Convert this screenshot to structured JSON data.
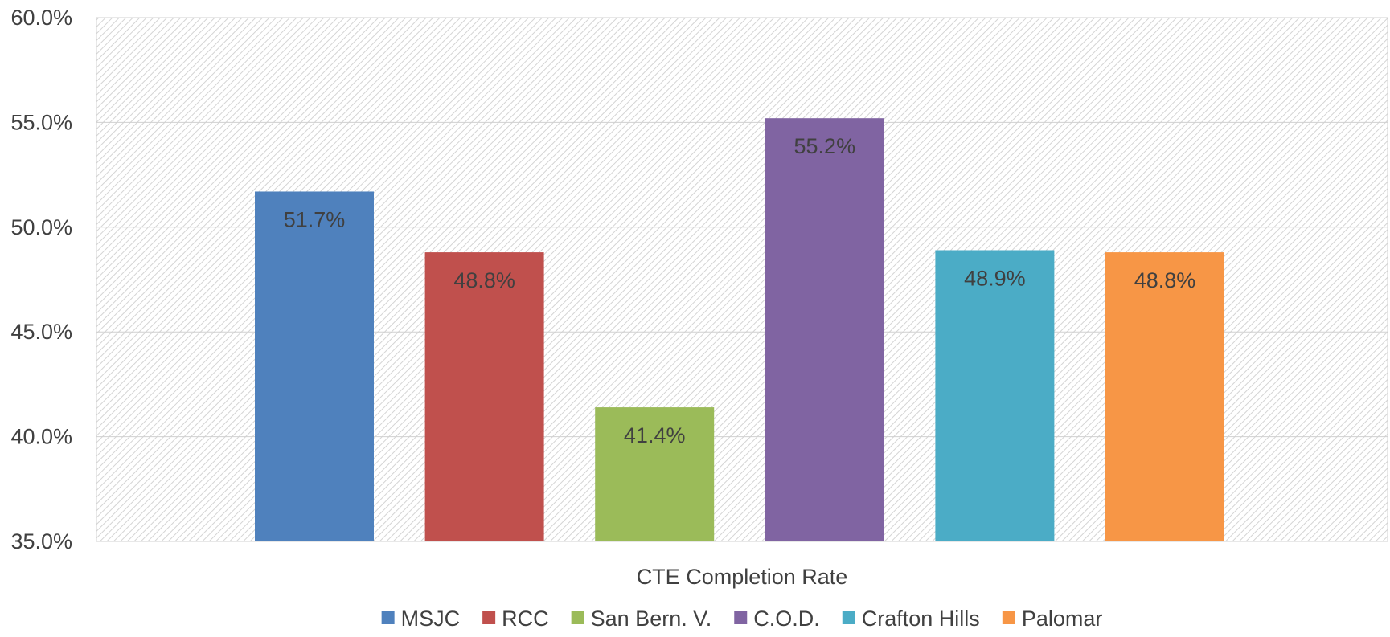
{
  "chart_data": {
    "type": "bar",
    "title": "",
    "xlabel": "",
    "ylabel": "",
    "category": "CTE Completion Rate",
    "ylim": [
      35,
      60
    ],
    "ytick_step": 5,
    "ytick_labels": [
      "35.0%",
      "40.0%",
      "45.0%",
      "50.0%",
      "55.0%",
      "60.0%"
    ],
    "grid": true,
    "background": "hatched",
    "legend_position": "bottom",
    "series": [
      {
        "name": "MSJC",
        "value": 51.7,
        "label": "51.7%",
        "color": "#4F81BD"
      },
      {
        "name": "RCC",
        "value": 48.8,
        "label": "48.8%",
        "color": "#C0504D"
      },
      {
        "name": "San Bern. V.",
        "value": 41.4,
        "label": "41.4%",
        "color": "#9BBB59"
      },
      {
        "name": "C.O.D.",
        "value": 55.2,
        "label": "55.2%",
        "color": "#8064A2"
      },
      {
        "name": "Crafton Hills",
        "value": 48.9,
        "label": "48.9%",
        "color": "#4BACC6"
      },
      {
        "name": "Palomar",
        "value": 48.8,
        "label": "48.8%",
        "color": "#F79646"
      }
    ]
  }
}
